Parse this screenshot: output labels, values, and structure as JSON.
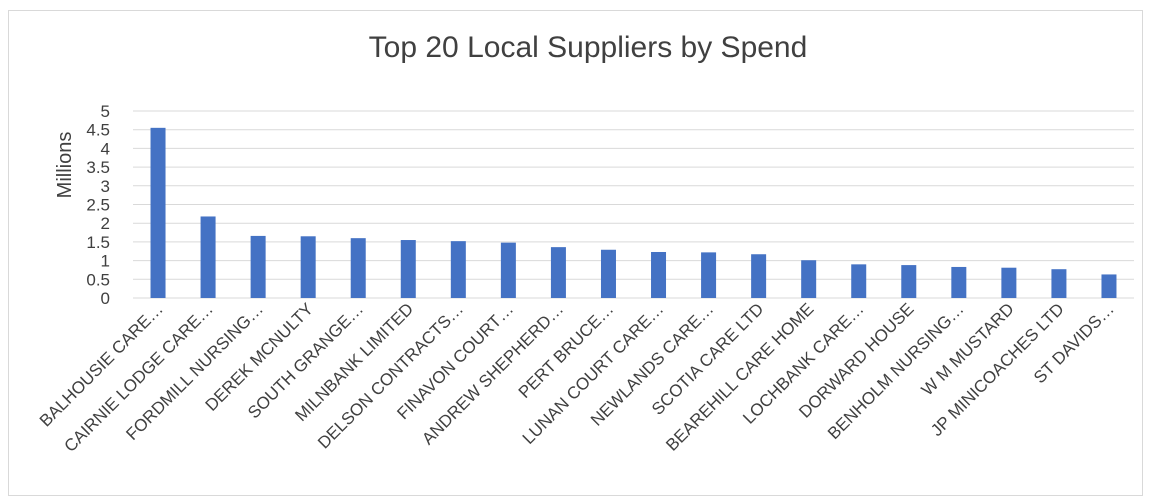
{
  "chart_data": {
    "type": "bar",
    "title": "Top 20 Local Suppliers by Spend",
    "ylabel": "Millions",
    "xlabel": "",
    "ylim": [
      0,
      5
    ],
    "yticks": [
      "0",
      "0.5",
      "1",
      "1.5",
      "2",
      "2.5",
      "3",
      "3.5",
      "4",
      "4.5",
      "5"
    ],
    "grid": true,
    "legend": "none",
    "bar_color": "#4472C4",
    "categories": [
      "BALHOUSIE CARE…",
      "CAIRNIE LODGE CARE…",
      "FORDMILL NURSING…",
      "DEREK MCNULTY",
      "SOUTH GRANGE…",
      "MILNBANK LIMITED",
      "DELSON CONTRACTS…",
      "FINAVON COURT…",
      "ANDREW SHEPHERD…",
      "PERT BRUCE…",
      "LUNAN COURT CARE…",
      "NEWLANDS CARE…",
      "SCOTIA CARE LTD",
      "BEAREHILL CARE HOME",
      "LOCHBANK CARE…",
      "DORWARD HOUSE",
      "BENHOLM NURSING…",
      "W M MUSTARD",
      "JP MINICOACHES LTD",
      "ST DAVIDS…"
    ],
    "values": [
      4.55,
      2.18,
      1.66,
      1.65,
      1.6,
      1.55,
      1.52,
      1.48,
      1.36,
      1.29,
      1.23,
      1.22,
      1.17,
      1.01,
      0.9,
      0.88,
      0.83,
      0.81,
      0.77,
      0.63
    ]
  }
}
